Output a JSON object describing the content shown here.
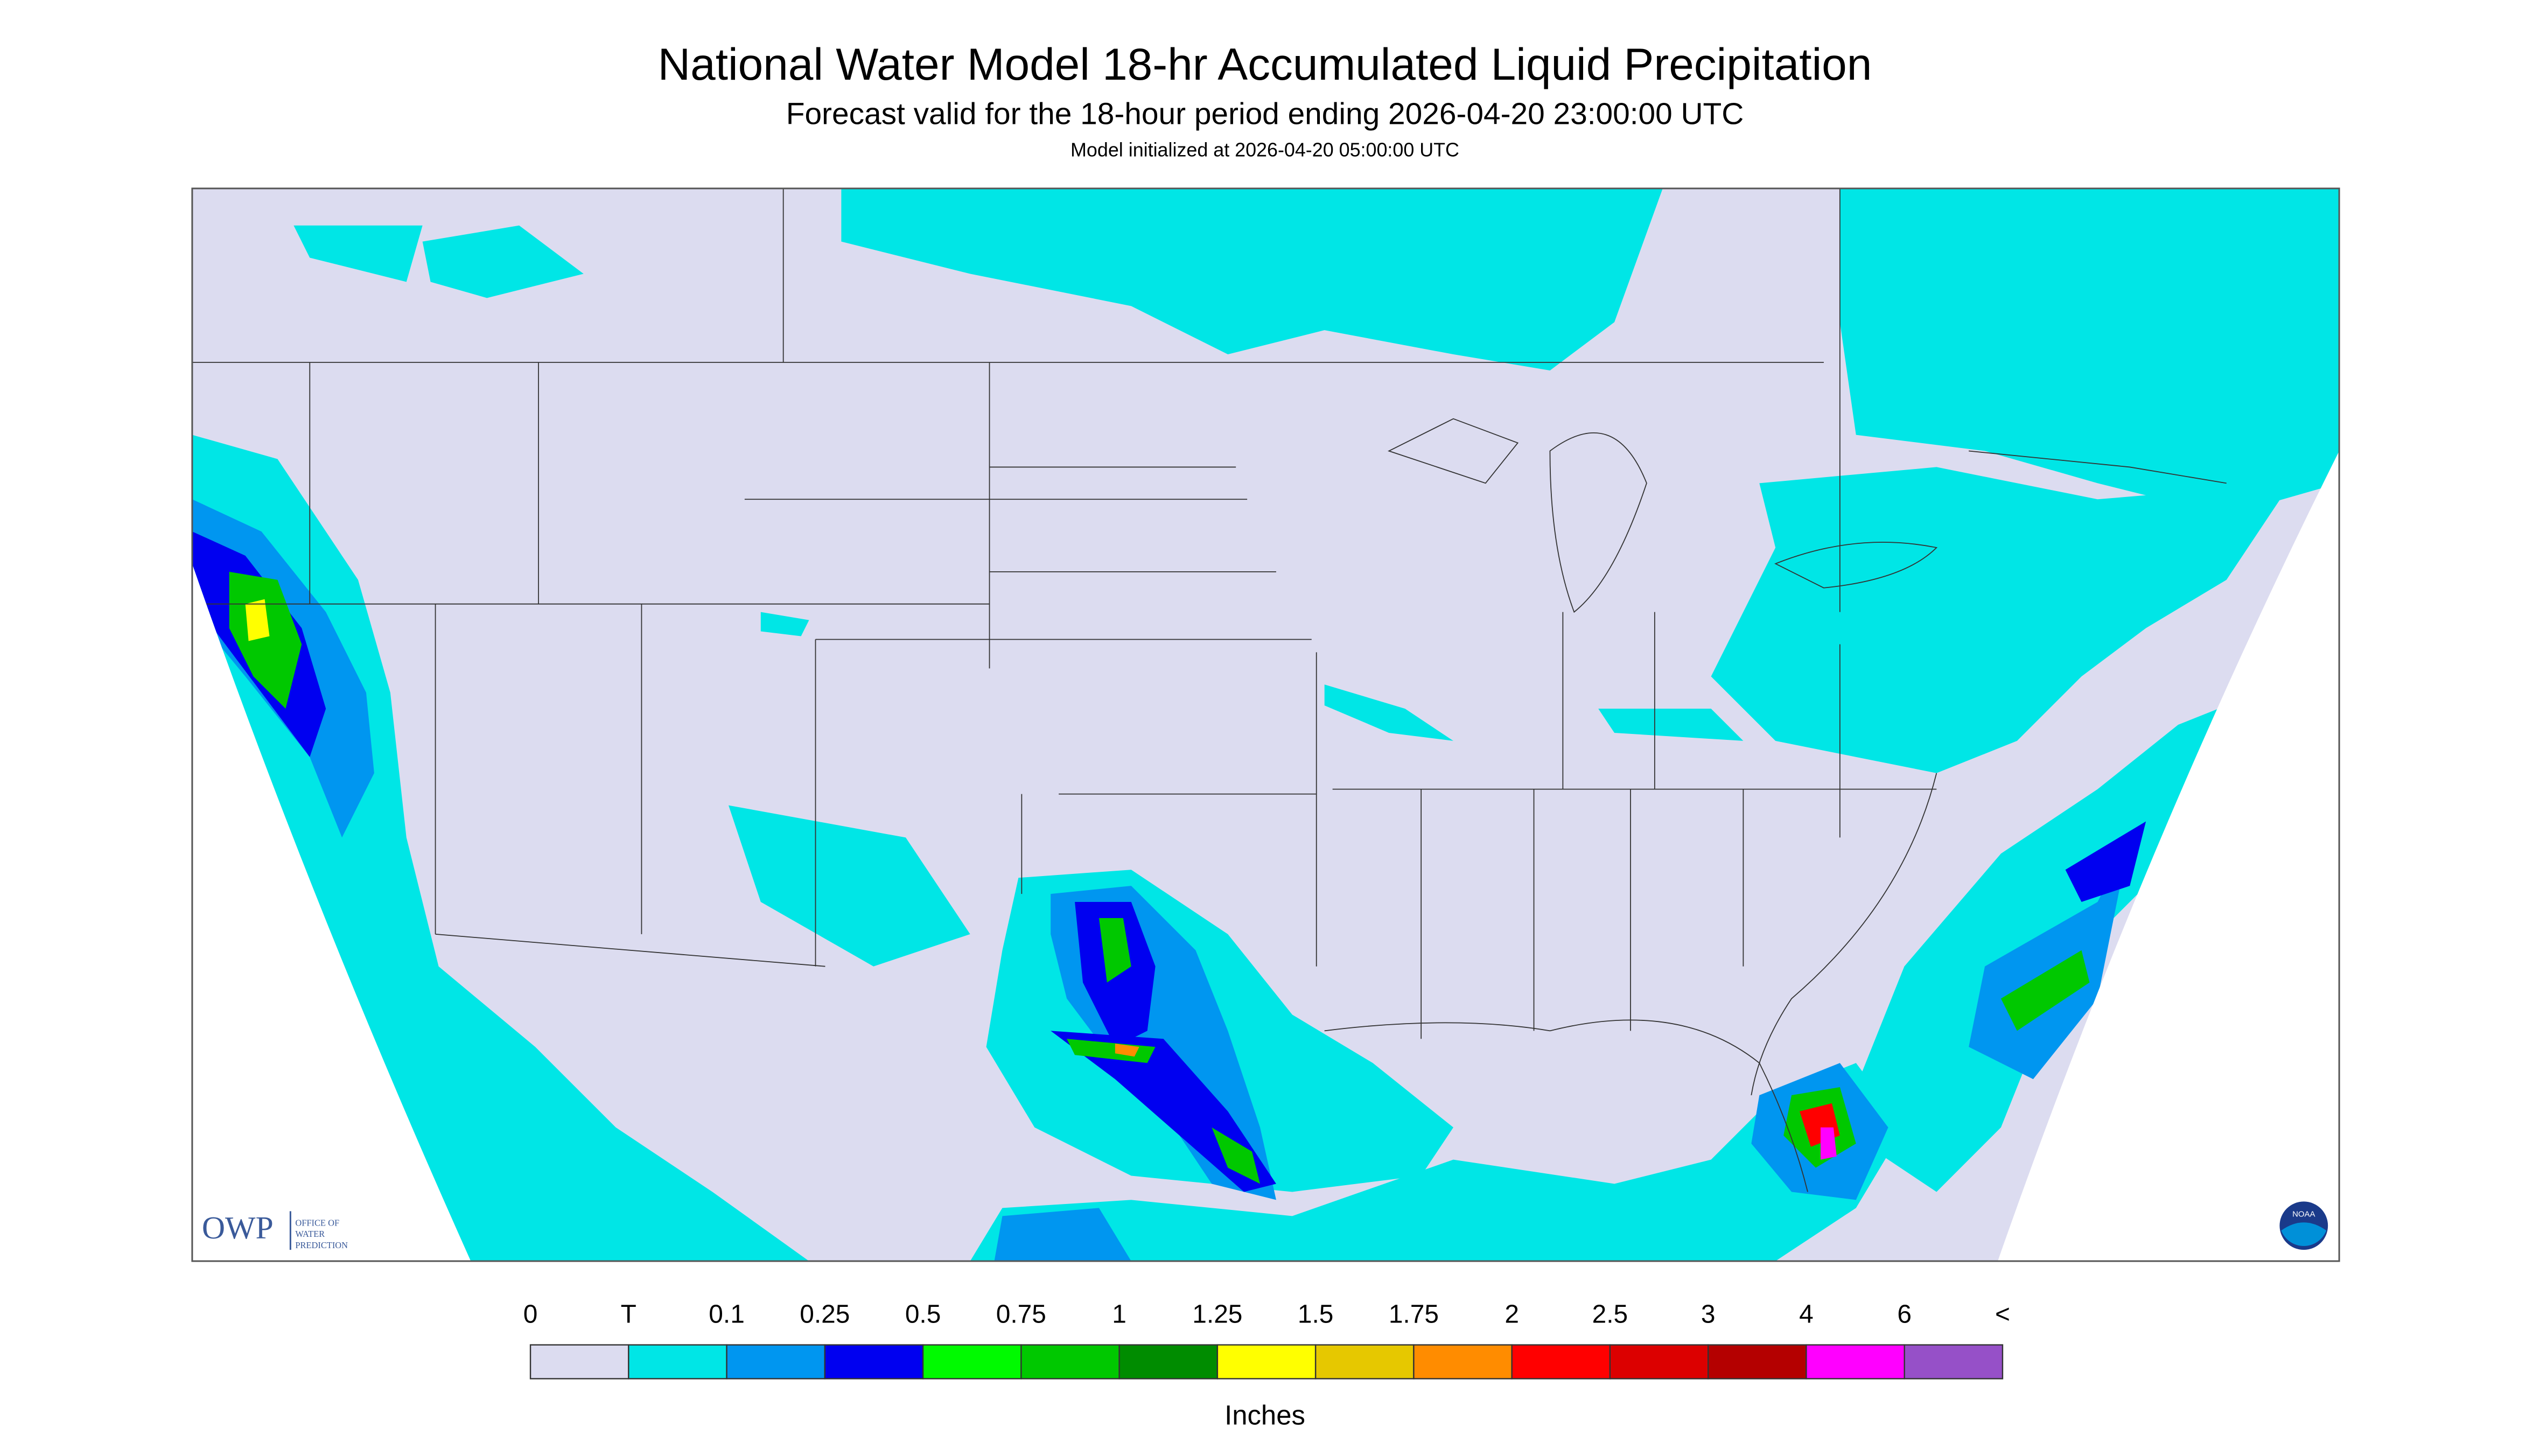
{
  "header": {
    "title": "National Water Model 18-hr Accumulated Liquid Precipitation",
    "subtitle": "Forecast valid for the 18-hour period ending 2026-04-20 23:00:00 UTC",
    "initialized": "Model initialized at 2026-04-20 05:00:00 UTC"
  },
  "logos": {
    "owp": "OWP",
    "owp_line1": "OFFICE OF",
    "owp_line2": "WATER",
    "owp_line3": "PREDICTION",
    "noaa": "NOAA"
  },
  "legend": {
    "labels": [
      "0",
      "T",
      "0.1",
      "0.25",
      "0.5",
      "0.75",
      "1",
      "1.25",
      "1.5",
      "1.75",
      "2",
      "2.5",
      "3",
      "4",
      "6",
      "<"
    ],
    "colors": [
      "#dcdcf0",
      "#00e6e6",
      "#0096f0",
      "#0000f0",
      "#00fa00",
      "#00c800",
      "#008c00",
      "#ffff00",
      "#e6c800",
      "#ff8c00",
      "#ff0000",
      "#dc0000",
      "#b40000",
      "#ff00ff",
      "#9650c8"
    ],
    "units": "Inches"
  }
}
